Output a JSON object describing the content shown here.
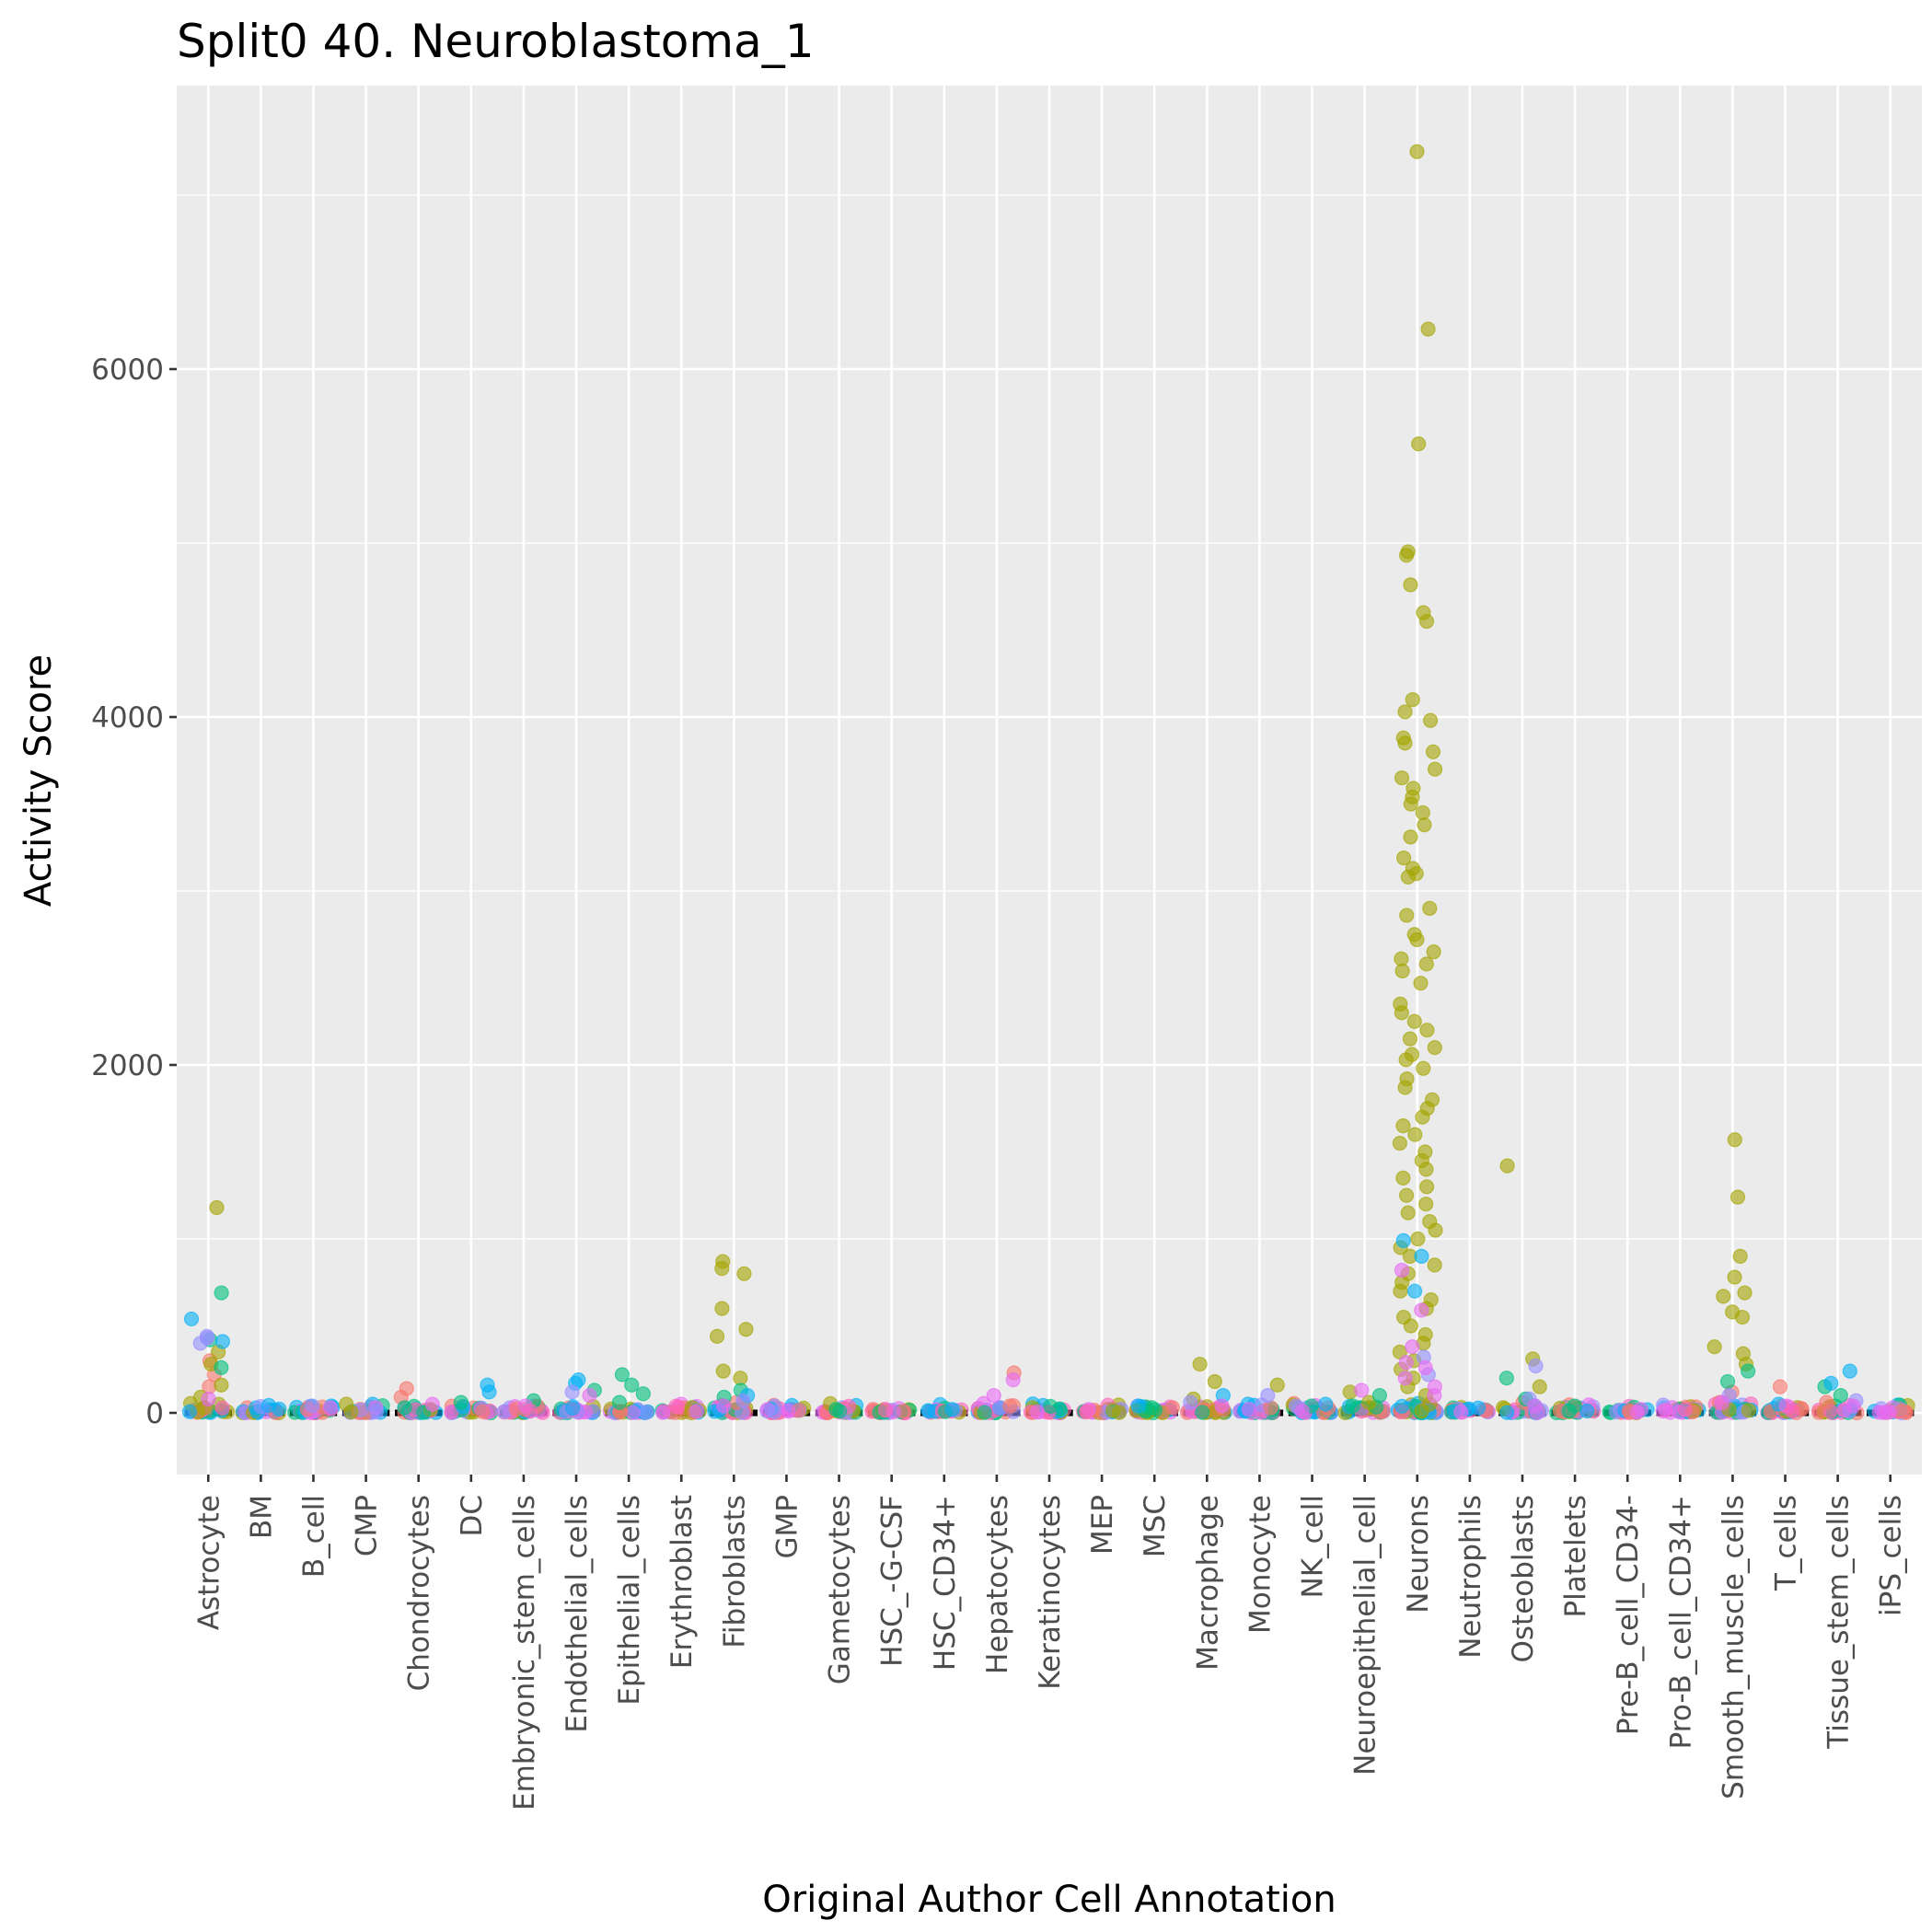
{
  "chart_data": {
    "type": "scatter",
    "title": "Split0 40. Neuroblastoma_1",
    "xlabel": "Original Author Cell Annotation",
    "ylabel": "Activity Score",
    "ylim": [
      -370,
      7600
    ],
    "yticks": [
      0,
      2000,
      4000,
      6000
    ],
    "grid": true,
    "legend": "none",
    "categories": [
      "Astrocyte",
      "BM",
      "B_cell",
      "CMP",
      "Chondrocytes",
      "DC",
      "Embryonic_stem_cells",
      "Endothelial_cells",
      "Epithelial_cells",
      "Erythroblast",
      "Fibroblasts",
      "GMP",
      "Gametocytes",
      "HSC_-G-CSF",
      "HSC_CD34+",
      "Hepatocytes",
      "Keratinocytes",
      "MEP",
      "MSC",
      "Macrophage",
      "Monocyte",
      "NK_cell",
      "Neuroepithelial_cell",
      "Neurons",
      "Neutrophils",
      "Osteoblasts",
      "Platelets",
      "Pre-B_cell_CD34-",
      "Pro-B_cell_CD34+",
      "Smooth_muscle_cells",
      "T_cells",
      "Tissue_stem_cells",
      "iPS_cells"
    ],
    "medians": [
      0,
      0,
      0,
      0,
      0,
      0,
      0,
      0,
      0,
      0,
      0,
      0,
      0,
      0,
      0,
      0,
      0,
      0,
      0,
      0,
      0,
      0,
      0,
      0,
      0,
      0,
      0,
      0,
      0,
      0,
      0,
      0,
      0
    ],
    "series": [
      {
        "color": "#f8766d",
        "points": [
          [
            0,
            300
          ],
          [
            0,
            220
          ],
          [
            0,
            150
          ],
          [
            2,
            20
          ],
          [
            4,
            90
          ],
          [
            4,
            140
          ],
          [
            6,
            20
          ],
          [
            8,
            10
          ],
          [
            9,
            5
          ],
          [
            10,
            60
          ],
          [
            13,
            10
          ],
          [
            15,
            230
          ],
          [
            15,
            40
          ],
          [
            17,
            10
          ],
          [
            19,
            20
          ],
          [
            20,
            30
          ],
          [
            25,
            60
          ],
          [
            26,
            5
          ],
          [
            28,
            5
          ],
          [
            29,
            120
          ],
          [
            29,
            60
          ],
          [
            30,
            150
          ],
          [
            30,
            40
          ],
          [
            31,
            60
          ],
          [
            32,
            10
          ]
        ]
      },
      {
        "color": "#a3a500",
        "points": [
          [
            0,
            1180
          ],
          [
            0,
            350
          ],
          [
            0,
            280
          ],
          [
            0,
            160
          ],
          [
            0,
            90
          ],
          [
            3,
            5
          ],
          [
            10,
            870
          ],
          [
            10,
            830
          ],
          [
            10,
            800
          ],
          [
            10,
            600
          ],
          [
            10,
            480
          ],
          [
            10,
            440
          ],
          [
            10,
            240
          ],
          [
            10,
            200
          ],
          [
            19,
            280
          ],
          [
            19,
            180
          ],
          [
            19,
            80
          ],
          [
            20,
            160
          ],
          [
            22,
            120
          ],
          [
            22,
            60
          ],
          [
            23,
            7250
          ],
          [
            23,
            6230
          ],
          [
            23,
            5570
          ],
          [
            23,
            4950
          ],
          [
            23,
            4930
          ],
          [
            23,
            4760
          ],
          [
            23,
            4600
          ],
          [
            23,
            4550
          ],
          [
            23,
            4100
          ],
          [
            23,
            4030
          ],
          [
            23,
            3980
          ],
          [
            23,
            3880
          ],
          [
            23,
            3850
          ],
          [
            23,
            3800
          ],
          [
            23,
            3700
          ],
          [
            23,
            3650
          ],
          [
            23,
            3590
          ],
          [
            23,
            3540
          ],
          [
            23,
            3500
          ],
          [
            23,
            3450
          ],
          [
            23,
            3380
          ],
          [
            23,
            3310
          ],
          [
            23,
            3190
          ],
          [
            23,
            3130
          ],
          [
            23,
            3100
          ],
          [
            23,
            3080
          ],
          [
            23,
            2900
          ],
          [
            23,
            2860
          ],
          [
            23,
            2750
          ],
          [
            23,
            2720
          ],
          [
            23,
            2650
          ],
          [
            23,
            2610
          ],
          [
            23,
            2580
          ],
          [
            23,
            2540
          ],
          [
            23,
            2470
          ],
          [
            23,
            2350
          ],
          [
            23,
            2300
          ],
          [
            23,
            2250
          ],
          [
            23,
            2200
          ],
          [
            23,
            2150
          ],
          [
            23,
            2100
          ],
          [
            23,
            2060
          ],
          [
            23,
            2030
          ],
          [
            23,
            1980
          ],
          [
            23,
            1920
          ],
          [
            23,
            1870
          ],
          [
            23,
            1800
          ],
          [
            23,
            1750
          ],
          [
            23,
            1700
          ],
          [
            23,
            1650
          ],
          [
            23,
            1600
          ],
          [
            23,
            1550
          ],
          [
            23,
            1500
          ],
          [
            23,
            1450
          ],
          [
            23,
            1400
          ],
          [
            23,
            1350
          ],
          [
            23,
            1300
          ],
          [
            23,
            1250
          ],
          [
            23,
            1200
          ],
          [
            23,
            1150
          ],
          [
            23,
            1100
          ],
          [
            23,
            1050
          ],
          [
            23,
            1000
          ],
          [
            23,
            950
          ],
          [
            23,
            900
          ],
          [
            23,
            850
          ],
          [
            23,
            800
          ],
          [
            23,
            750
          ],
          [
            23,
            700
          ],
          [
            23,
            650
          ],
          [
            23,
            600
          ],
          [
            23,
            550
          ],
          [
            23,
            500
          ],
          [
            23,
            450
          ],
          [
            23,
            400
          ],
          [
            23,
            350
          ],
          [
            23,
            300
          ],
          [
            23,
            250
          ],
          [
            23,
            200
          ],
          [
            23,
            150
          ],
          [
            23,
            100
          ],
          [
            23,
            50
          ],
          [
            23,
            10
          ],
          [
            25,
            1420
          ],
          [
            25,
            310
          ],
          [
            25,
            150
          ],
          [
            29,
            1570
          ],
          [
            29,
            1240
          ],
          [
            29,
            900
          ],
          [
            29,
            780
          ],
          [
            29,
            690
          ],
          [
            29,
            670
          ],
          [
            29,
            580
          ],
          [
            29,
            550
          ],
          [
            29,
            380
          ],
          [
            29,
            340
          ],
          [
            29,
            280
          ],
          [
            29,
            20
          ]
        ]
      },
      {
        "color": "#00bf7d",
        "points": [
          [
            0,
            690
          ],
          [
            0,
            420
          ],
          [
            0,
            260
          ],
          [
            4,
            30
          ],
          [
            5,
            60
          ],
          [
            6,
            70
          ],
          [
            7,
            130
          ],
          [
            8,
            220
          ],
          [
            8,
            160
          ],
          [
            8,
            110
          ],
          [
            8,
            60
          ],
          [
            10,
            130
          ],
          [
            10,
            90
          ],
          [
            12,
            20
          ],
          [
            12,
            10
          ],
          [
            18,
            30
          ],
          [
            18,
            10
          ],
          [
            21,
            40
          ],
          [
            22,
            100
          ],
          [
            22,
            40
          ],
          [
            24,
            5
          ],
          [
            25,
            200
          ],
          [
            25,
            80
          ],
          [
            26,
            40
          ],
          [
            26,
            10
          ],
          [
            29,
            240
          ],
          [
            29,
            180
          ],
          [
            31,
            150
          ],
          [
            31,
            100
          ]
        ]
      },
      {
        "color": "#00b0f6",
        "points": [
          [
            0,
            540
          ],
          [
            0,
            410
          ],
          [
            2,
            40
          ],
          [
            5,
            160
          ],
          [
            5,
            120
          ],
          [
            7,
            190
          ],
          [
            7,
            170
          ],
          [
            10,
            100
          ],
          [
            14,
            20
          ],
          [
            18,
            40
          ],
          [
            19,
            100
          ],
          [
            21,
            50
          ],
          [
            23,
            990
          ],
          [
            23,
            900
          ],
          [
            23,
            700
          ],
          [
            24,
            10
          ],
          [
            30,
            50
          ],
          [
            31,
            240
          ],
          [
            31,
            170
          ]
        ]
      },
      {
        "color": "#9590ff",
        "points": [
          [
            0,
            440
          ],
          [
            0,
            430
          ],
          [
            0,
            400
          ],
          [
            2,
            40
          ],
          [
            3,
            5
          ],
          [
            7,
            120
          ],
          [
            10,
            70
          ],
          [
            11,
            5
          ],
          [
            19,
            60
          ],
          [
            20,
            100
          ],
          [
            21,
            40
          ],
          [
            23,
            320
          ],
          [
            23,
            220
          ],
          [
            25,
            270
          ],
          [
            25,
            80
          ],
          [
            29,
            100
          ],
          [
            31,
            70
          ]
        ]
      },
      {
        "color": "#e76bf3",
        "points": [
          [
            0,
            80
          ],
          [
            2,
            30
          ],
          [
            4,
            50
          ],
          [
            6,
            40
          ],
          [
            7,
            100
          ],
          [
            9,
            10
          ],
          [
            10,
            40
          ],
          [
            11,
            10
          ],
          [
            13,
            5
          ],
          [
            15,
            190
          ],
          [
            15,
            100
          ],
          [
            16,
            5
          ],
          [
            17,
            20
          ],
          [
            19,
            40
          ],
          [
            20,
            20
          ],
          [
            21,
            10
          ],
          [
            22,
            130
          ],
          [
            23,
            820
          ],
          [
            23,
            590
          ],
          [
            23,
            380
          ],
          [
            23,
            290
          ],
          [
            23,
            260
          ],
          [
            23,
            200
          ],
          [
            23,
            150
          ],
          [
            23,
            100
          ],
          [
            24,
            5
          ],
          [
            25,
            40
          ],
          [
            27,
            5
          ],
          [
            28,
            10
          ],
          [
            29,
            60
          ],
          [
            30,
            40
          ],
          [
            31,
            40
          ],
          [
            32,
            5
          ]
        ]
      },
      {
        "color": "#ff62bc",
        "points": [
          [
            6,
            10
          ],
          [
            13,
            15
          ],
          [
            17,
            5
          ],
          [
            28,
            20
          ],
          [
            30,
            10
          ]
        ]
      }
    ]
  }
}
